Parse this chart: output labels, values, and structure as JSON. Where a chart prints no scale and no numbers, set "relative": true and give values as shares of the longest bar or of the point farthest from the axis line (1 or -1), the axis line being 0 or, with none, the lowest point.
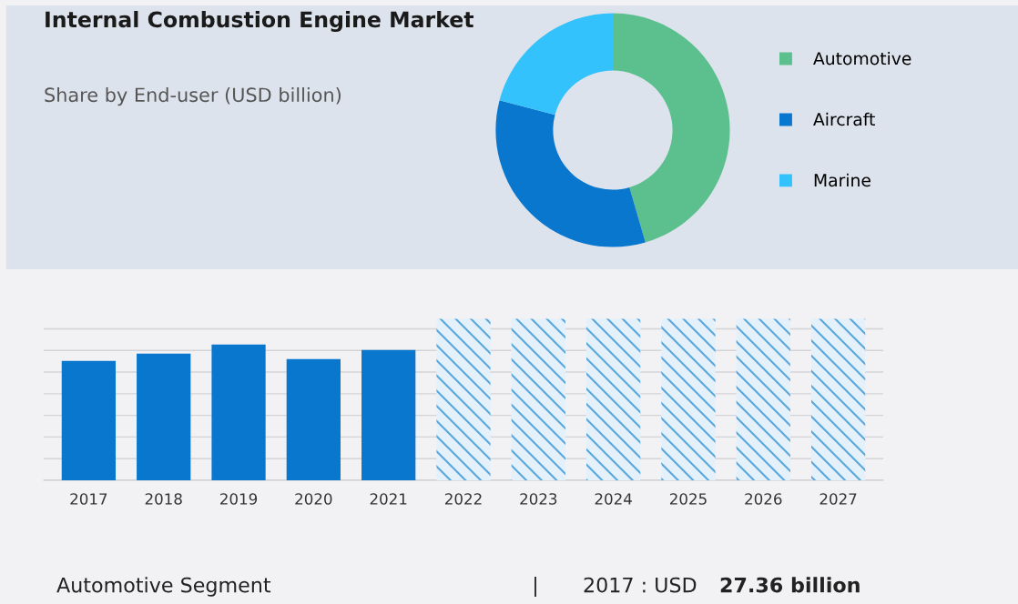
{
  "chart_data": [
    {
      "type": "donut",
      "title": "Internal Combustion Engine Market",
      "subtitle": "Share by End-user (USD billion)",
      "categories": [
        "Automotive",
        "Aircraft",
        "Marine"
      ],
      "values": [
        45.5,
        33.6,
        20.9
      ],
      "colors": [
        "#5bbf8e",
        "#0a77cf",
        "#33c2fb"
      ],
      "legend": "right"
    },
    {
      "type": "bar",
      "relative": true,
      "categories": [
        "2017",
        "2018",
        "2019",
        "2020",
        "2021",
        "2022",
        "2023",
        "2024",
        "2025",
        "2026",
        "2027"
      ],
      "series": [
        {
          "color": "#0a77cf",
          "values": [
            0.739,
            0.784,
            0.841,
            0.75,
            0.807,
            null,
            null,
            null,
            null,
            null,
            null
          ]
        },
        {
          "color": "#5aa7dc",
          "values": [
            null,
            null,
            null,
            null,
            null,
            1,
            1,
            1,
            1,
            1,
            1
          ]
        }
      ],
      "grid": "y",
      "legend": false,
      "annotations": [
        "Automotive Segment",
        "|",
        "2017 : USD",
        "27.36 billion"
      ]
    }
  ]
}
